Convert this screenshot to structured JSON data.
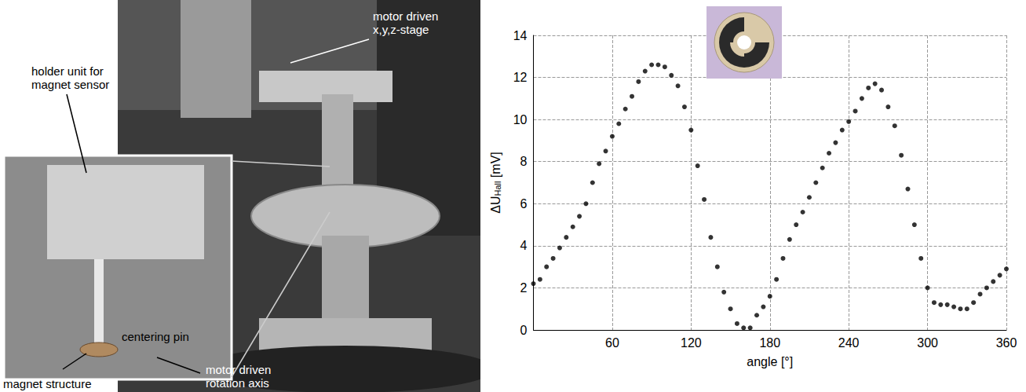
{
  "photo_labels": [
    {
      "text": "motor driven x,y,z-stage",
      "color": "#ffffff"
    },
    {
      "text": "holder unit for magnet sensor",
      "color": "#000000"
    },
    {
      "text": "centering pin",
      "color": "#000000"
    },
    {
      "text": "magnet structure",
      "color": "#000000"
    },
    {
      "text": "motor driven rotation axis",
      "color": "#ffffff"
    }
  ],
  "chart_data": {
    "type": "scatter",
    "x_label": "angle [°]",
    "y_label": {
      "text": "ΔU",
      "subscript": "Hall",
      "suffix": " [mV]"
    },
    "xlim": [
      0,
      360
    ],
    "xticks": [
      60,
      120,
      180,
      240,
      300,
      360
    ],
    "ylim": [
      0,
      14
    ],
    "yticks": [
      0,
      2,
      4,
      6,
      8,
      10,
      12,
      14
    ],
    "grid": true,
    "color": "#000000",
    "marker": "circle",
    "x": [
      0,
      5,
      10,
      15,
      20,
      25,
      30,
      35,
      40,
      45,
      50,
      55,
      60,
      65,
      70,
      75,
      80,
      85,
      90,
      95,
      100,
      105,
      110,
      115,
      120,
      125,
      130,
      135,
      140,
      145,
      150,
      155,
      160,
      165,
      170,
      175,
      180,
      185,
      190,
      195,
      200,
      205,
      210,
      215,
      220,
      225,
      230,
      235,
      240,
      245,
      250,
      255,
      260,
      265,
      270,
      275,
      280,
      285,
      290,
      295,
      300,
      305,
      310,
      315,
      320,
      325,
      330,
      335,
      340,
      345,
      350,
      355,
      360
    ],
    "values": [
      2.2,
      2.4,
      3.0,
      3.4,
      3.9,
      4.4,
      4.9,
      5.4,
      6.0,
      7.0,
      7.9,
      8.5,
      9.2,
      9.8,
      10.5,
      11.1,
      11.8,
      12.3,
      12.6,
      12.6,
      12.5,
      12.1,
      11.6,
      10.6,
      9.5,
      7.8,
      6.2,
      4.4,
      3.0,
      1.8,
      1.0,
      0.3,
      0.1,
      0.1,
      0.7,
      1.1,
      1.6,
      2.4,
      3.4,
      4.3,
      5.0,
      5.6,
      6.3,
      7.0,
      7.7,
      8.4,
      8.9,
      9.5,
      9.9,
      10.4,
      11.0,
      11.5,
      11.7,
      11.4,
      10.6,
      9.7,
      8.3,
      6.7,
      5.0,
      3.4,
      2.0,
      1.3,
      1.2,
      1.2,
      1.1,
      1.0,
      1.0,
      1.3,
      1.7,
      2.0,
      2.3,
      2.6,
      2.9
    ]
  }
}
